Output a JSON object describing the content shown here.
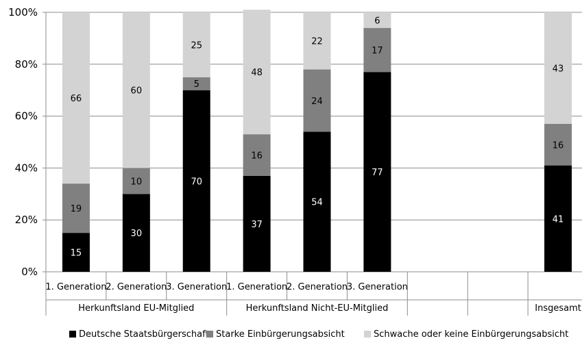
{
  "chart_data": {
    "type": "bar",
    "stacked": true,
    "percent_stacked": true,
    "title": "",
    "xlabel": "",
    "ylabel": "",
    "ylim": [
      0,
      100
    ],
    "yticks": [
      "0%",
      "20%",
      "40%",
      "60%",
      "80%",
      "100%"
    ],
    "grid": "horizontal",
    "legend_position": "bottom",
    "categories": [
      "1. Generation",
      "2. Generation",
      "3. Generation",
      "1. Generation",
      "2. Generation",
      "3. Generation",
      "",
      "",
      ""
    ],
    "groups": [
      {
        "label": "Herkunftsland  EU-Mitglied",
        "span": [
          0,
          2
        ]
      },
      {
        "label": "Herkunftsland  Nicht-EU-Mitglied",
        "span": [
          3,
          5
        ]
      },
      {
        "label": "",
        "span": [
          6,
          6
        ]
      },
      {
        "label": "",
        "span": [
          7,
          7
        ]
      },
      {
        "label": "Insgesamt",
        "span": [
          8,
          8
        ]
      }
    ],
    "series": [
      {
        "name": "Deutsche Staatsbürgerschaft",
        "color": "#000000",
        "label_color": "#ffffff",
        "values": [
          15,
          30,
          70,
          37,
          54,
          77,
          null,
          null,
          41
        ]
      },
      {
        "name": "Starke Einbürgerungsabsicht",
        "color": "#808080",
        "label_color": "#000000",
        "values": [
          19,
          10,
          5,
          16,
          24,
          17,
          null,
          null,
          16
        ]
      },
      {
        "name": "Schwache oder keine Einbürgerungsabsicht",
        "color": "#d3d3d3",
        "label_color": "#000000",
        "values": [
          66,
          60,
          25,
          48,
          22,
          6,
          null,
          null,
          43
        ]
      }
    ]
  }
}
